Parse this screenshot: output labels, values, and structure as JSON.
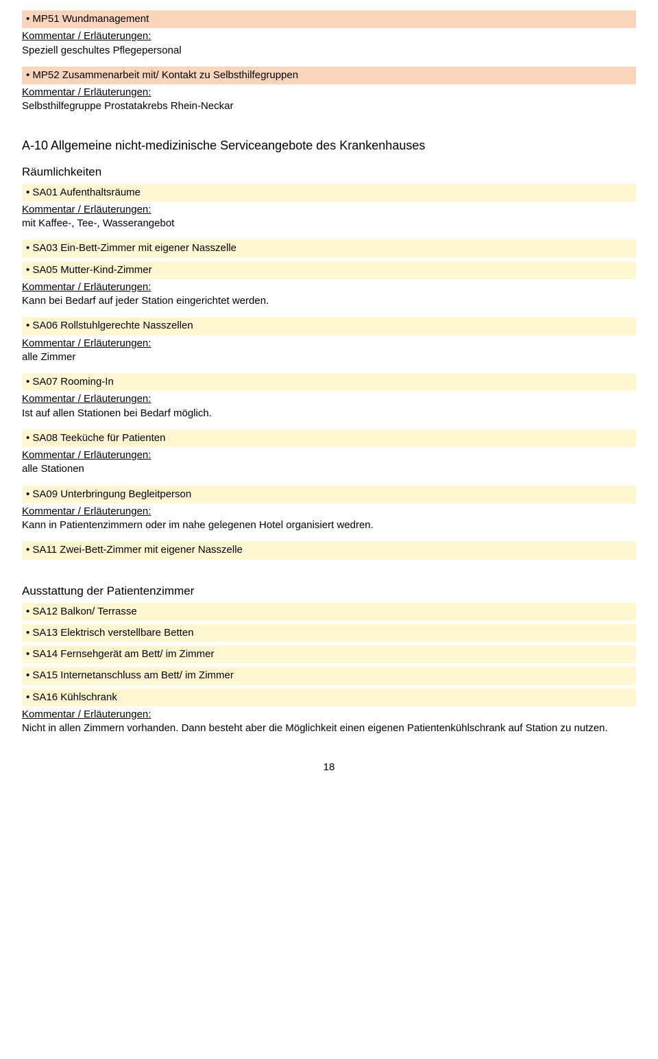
{
  "colors": {
    "peach": "#fbd4bc",
    "yellow": "#fff7d2",
    "text": "#000000",
    "page_bg": "#ffffff"
  },
  "typography": {
    "body_fontsize_pt": 11,
    "heading_fontsize_pt": 14,
    "font_family": "Arial"
  },
  "comment_label": "Kommentar / Erläuterungen:",
  "items": {
    "mp51": {
      "title": "MP51 Wundmanagement",
      "comment": "Speziell geschultes Pflegepersonal"
    },
    "mp52": {
      "title": "MP52 Zusammenarbeit mit/ Kontakt zu Selbsthilfegruppen",
      "comment": "Selbsthilfegruppe Prostatakrebs Rhein-Neckar"
    },
    "section_a10": "A-10 Allgemeine nicht-medizinische Serviceangebote des Krankenhauses",
    "sub_raum": "Räumlichkeiten",
    "sa01": {
      "title": "SA01 Aufenthaltsräume",
      "comment": "mit Kaffee-, Tee-, Wasserangebot"
    },
    "sa03": {
      "title": "SA03 Ein-Bett-Zimmer mit eigener Nasszelle"
    },
    "sa05": {
      "title": "SA05 Mutter-Kind-Zimmer",
      "comment": "Kann bei Bedarf auf jeder Station eingerichtet werden."
    },
    "sa06": {
      "title": "SA06 Rollstuhlgerechte Nasszellen",
      "comment": "alle Zimmer"
    },
    "sa07": {
      "title": "SA07 Rooming-In",
      "comment": "Ist auf allen Stationen bei Bedarf möglich."
    },
    "sa08": {
      "title": "SA08 Teeküche für Patienten",
      "comment": "alle Stationen"
    },
    "sa09": {
      "title": "SA09 Unterbringung Begleitperson",
      "comment": "Kann in Patientenzimmern oder im nahe gelegenen Hotel organisiert wedren."
    },
    "sa11": {
      "title": "SA11 Zwei-Bett-Zimmer mit eigener Nasszelle"
    },
    "sub_ausst": "Ausstattung der Patientenzimmer",
    "sa12": {
      "title": "SA12 Balkon/ Terrasse"
    },
    "sa13": {
      "title": "SA13 Elektrisch verstellbare Betten"
    },
    "sa14": {
      "title": "SA14 Fernsehgerät am Bett/ im Zimmer"
    },
    "sa15": {
      "title": "SA15 Internetanschluss am Bett/ im Zimmer"
    },
    "sa16": {
      "title": "SA16 Kühlschrank",
      "comment": "Nicht in allen Zimmern vorhanden. Dann besteht aber die Möglichkeit einen eigenen Patientenkühlschrank auf Station zu nutzen."
    }
  },
  "page_number": "18"
}
